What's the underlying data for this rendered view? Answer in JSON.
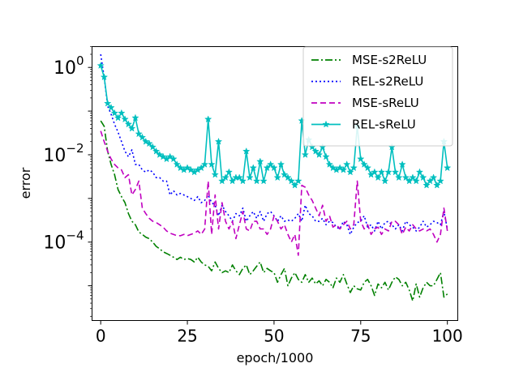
{
  "chart_data": {
    "type": "line",
    "title": "",
    "xlabel": "epoch/1000",
    "ylabel": "error",
    "yscale": "log",
    "xlim": [
      -2.5,
      103
    ],
    "ylim": [
      1.6e-06,
      3
    ],
    "xticks": [
      0,
      25,
      50,
      75,
      100
    ],
    "xtick_labels": [
      "0",
      "25",
      "50",
      "75",
      "100"
    ],
    "yticks": [
      1,
      0.01,
      0.0001
    ],
    "ytick_labels": [
      {
        "base": "10",
        "exp": "0"
      },
      {
        "base": "10",
        "exp": "−2"
      },
      {
        "base": "10",
        "exp": "−4"
      }
    ],
    "grid": false,
    "legend_position": "top-right",
    "series": [
      {
        "name": "MSE-s2ReLU",
        "color": "#008000",
        "style": "dashdot",
        "marker": "none",
        "x": [
          0,
          1,
          2,
          3,
          4,
          5,
          6,
          7,
          8,
          9,
          10,
          11,
          12,
          13,
          14,
          15,
          16,
          17,
          18,
          19,
          20,
          21,
          22,
          23,
          24,
          25,
          26,
          27,
          28,
          29,
          30,
          31,
          32,
          33,
          34,
          35,
          36,
          37,
          38,
          39,
          40,
          41,
          42,
          43,
          44,
          45,
          46,
          47,
          48,
          49,
          50,
          51,
          52,
          53,
          54,
          55,
          56,
          57,
          58,
          59,
          60,
          61,
          62,
          63,
          64,
          65,
          66,
          67,
          68,
          69,
          70,
          71,
          72,
          73,
          74,
          75,
          76,
          77,
          78,
          79,
          80,
          81,
          82,
          83,
          84,
          85,
          86,
          87,
          88,
          89,
          90,
          91,
          92,
          93,
          94,
          95,
          96,
          97,
          98,
          99,
          100
        ],
        "y": [
          0.06,
          0.045,
          0.012,
          0.006,
          0.0035,
          0.0016,
          0.0011,
          0.0008,
          0.00045,
          0.0003,
          0.00025,
          0.00017,
          0.00015,
          0.00013,
          0.00012,
          0.0001,
          8e-05,
          7e-05,
          6e-05,
          5.5e-05,
          5e-05,
          4.5e-05,
          4e-05,
          4.5e-05,
          4e-05,
          4.2e-05,
          4e-05,
          3.5e-05,
          4.5e-05,
          3.5e-05,
          3e-05,
          2.8e-05,
          2.2e-05,
          3.5e-05,
          2.5e-05,
          2e-05,
          2.2e-05,
          2e-05,
          3e-05,
          2.2e-05,
          1.8e-05,
          2.5e-05,
          3e-05,
          1.8e-05,
          2.2e-05,
          2.8e-05,
          3.5e-05,
          2e-05,
          2.5e-05,
          2.2e-05,
          2e-05,
          1.2e-05,
          1.8e-05,
          2.5e-05,
          1e-05,
          1.5e-05,
          2e-05,
          1.4e-05,
          1.2e-05,
          1.8e-05,
          1.2e-05,
          1.5e-05,
          1.1e-05,
          1.3e-05,
          1e-05,
          1.4e-05,
          1.2e-05,
          9e-06,
          1.5e-05,
          1.2e-05,
          1.8e-05,
          1.1e-05,
          7e-06,
          1e-05,
          8.5e-06,
          8e-06,
          1.2e-05,
          1.4e-05,
          1e-05,
          6e-06,
          1.1e-05,
          9e-06,
          1.2e-05,
          8e-06,
          1.2e-05,
          1.6e-05,
          1.4e-05,
          1e-05,
          1.2e-05,
          8e-06,
          4.5e-06,
          1.1e-05,
          5.5e-06,
          9e-06,
          1.2e-05,
          1e-05,
          1e-05,
          1.4e-05,
          2e-05,
          5.5e-06,
          6.5e-06
        ]
      },
      {
        "name": "REL-s2ReLU",
        "color": "#0000ff",
        "style": "dotted",
        "marker": "none",
        "x": [
          0,
          1,
          2,
          3,
          4,
          5,
          6,
          7,
          8,
          9,
          10,
          11,
          12,
          13,
          14,
          15,
          16,
          17,
          18,
          19,
          20,
          21,
          22,
          23,
          24,
          25,
          26,
          27,
          28,
          29,
          30,
          31,
          32,
          33,
          34,
          35,
          36,
          37,
          38,
          39,
          40,
          41,
          42,
          43,
          44,
          45,
          46,
          47,
          48,
          49,
          50,
          51,
          52,
          53,
          54,
          55,
          56,
          57,
          58,
          59,
          60,
          61,
          62,
          63,
          64,
          65,
          66,
          67,
          68,
          69,
          70,
          71,
          72,
          73,
          74,
          75,
          76,
          77,
          78,
          79,
          80,
          81,
          82,
          83,
          84,
          85,
          86,
          87,
          88,
          89,
          90,
          91,
          92,
          93,
          94,
          95,
          96,
          97,
          98,
          99,
          100
        ],
        "y": [
          2.0,
          0.6,
          0.13,
          0.085,
          0.05,
          0.033,
          0.02,
          0.012,
          0.009,
          0.013,
          0.006,
          0.006,
          0.0045,
          0.004,
          0.0045,
          0.004,
          0.003,
          0.003,
          0.0025,
          0.0025,
          0.0012,
          0.0015,
          0.0012,
          0.0013,
          0.0012,
          0.0011,
          0.001,
          0.0009,
          0.0011,
          0.0008,
          0.0009,
          0.0012,
          0.0008,
          0.0007,
          0.0004,
          0.0007,
          0.0005,
          0.0004,
          0.0003,
          0.00045,
          0.0004,
          0.0006,
          0.0003,
          0.0004,
          0.0005,
          0.00035,
          0.0005,
          0.0003,
          0.00045,
          0.0005,
          0.0004,
          0.0003,
          0.0004,
          0.0003,
          0.00032,
          0.0003,
          0.00035,
          0.00045,
          0.0003,
          0.0007,
          0.00045,
          0.0004,
          0.0003,
          0.0003,
          0.00035,
          0.00025,
          0.0003,
          0.00028,
          0.00022,
          0.0002,
          0.0003,
          0.00025,
          0.00015,
          0.00022,
          0.00028,
          0.0003,
          0.0004,
          0.00022,
          0.00025,
          0.00018,
          0.0003,
          0.0002,
          0.00028,
          0.0003,
          0.00025,
          0.0002,
          0.00025,
          0.00018,
          0.0003,
          0.00025,
          0.00022,
          0.00018,
          0.00022,
          0.0003,
          0.00022,
          0.00025,
          0.0003,
          0.00028,
          0.00025,
          0.0005,
          0.0002
        ]
      },
      {
        "name": "MSE-sReLU",
        "color": "#c000c0",
        "style": "dashed",
        "marker": "none",
        "x": [
          0,
          1,
          2,
          3,
          4,
          5,
          6,
          7,
          8,
          9,
          10,
          11,
          12,
          13,
          14,
          15,
          16,
          17,
          18,
          19,
          20,
          21,
          22,
          23,
          24,
          25,
          26,
          27,
          28,
          29,
          30,
          31,
          32,
          33,
          34,
          35,
          36,
          37,
          38,
          39,
          40,
          41,
          42,
          43,
          44,
          45,
          46,
          47,
          48,
          49,
          50,
          51,
          52,
          53,
          54,
          55,
          56,
          57,
          58,
          59,
          60,
          61,
          62,
          63,
          64,
          65,
          66,
          67,
          68,
          69,
          70,
          71,
          72,
          73,
          74,
          75,
          76,
          77,
          78,
          79,
          80,
          81,
          82,
          83,
          84,
          85,
          86,
          87,
          88,
          89,
          90,
          91,
          92,
          93,
          94,
          95,
          96,
          97,
          98,
          99,
          100
        ],
        "y": [
          0.035,
          0.02,
          0.012,
          0.008,
          0.006,
          0.005,
          0.0045,
          0.003,
          0.0035,
          0.0012,
          0.0016,
          0.0025,
          0.0006,
          0.00045,
          0.00035,
          0.0003,
          0.00028,
          0.00025,
          0.00022,
          0.00018,
          0.00016,
          0.00015,
          0.00014,
          0.00014,
          0.00015,
          0.00014,
          0.00015,
          0.00016,
          0.00018,
          0.00015,
          0.0002,
          0.0025,
          0.00015,
          0.0012,
          0.0002,
          0.0008,
          0.0003,
          0.0002,
          0.0003,
          0.00012,
          0.00025,
          0.0005,
          0.0002,
          0.00018,
          0.0003,
          0.0003,
          0.0002,
          0.0002,
          0.00015,
          0.0002,
          0.0004,
          0.0003,
          0.0002,
          0.00025,
          0.00015,
          0.0001,
          0.00015,
          5e-05,
          0.002,
          0.0018,
          0.0012,
          0.0009,
          0.0006,
          0.0004,
          0.0007,
          0.0003,
          0.0004,
          0.00022,
          0.00025,
          0.0002,
          0.00025,
          0.0003,
          0.0002,
          0.00025,
          0.0025,
          0.0003,
          0.0002,
          0.00025,
          0.00015,
          0.0002,
          0.00022,
          0.00015,
          0.0002,
          0.00018,
          0.0003,
          0.0003,
          0.00025,
          0.00015,
          0.00022,
          0.00018,
          0.00025,
          0.0002,
          0.00018,
          0.0002,
          0.00018,
          0.0002,
          0.00015,
          0.0001,
          0.00015,
          0.0006,
          0.00018
        ]
      },
      {
        "name": "REL-sReLU",
        "color": "#00bfbf",
        "style": "solid",
        "marker": "star",
        "x": [
          0,
          1,
          2,
          3,
          4,
          5,
          6,
          7,
          8,
          9,
          10,
          11,
          12,
          13,
          14,
          15,
          16,
          17,
          18,
          19,
          20,
          21,
          22,
          23,
          24,
          25,
          26,
          27,
          28,
          29,
          30,
          31,
          32,
          33,
          34,
          35,
          36,
          37,
          38,
          39,
          40,
          41,
          42,
          43,
          44,
          45,
          46,
          47,
          48,
          49,
          50,
          51,
          52,
          53,
          54,
          55,
          56,
          57,
          58,
          59,
          60,
          61,
          62,
          63,
          64,
          65,
          66,
          67,
          68,
          69,
          70,
          71,
          72,
          73,
          74,
          75,
          76,
          77,
          78,
          79,
          80,
          81,
          82,
          83,
          84,
          85,
          86,
          87,
          88,
          89,
          90,
          91,
          92,
          93,
          94,
          95,
          96,
          97,
          98,
          99,
          100
        ],
        "y": [
          1.1,
          0.6,
          0.15,
          0.12,
          0.09,
          0.07,
          0.09,
          0.065,
          0.05,
          0.04,
          0.07,
          0.03,
          0.025,
          0.02,
          0.018,
          0.015,
          0.012,
          0.01,
          0.009,
          0.008,
          0.009,
          0.008,
          0.006,
          0.005,
          0.0045,
          0.005,
          0.0045,
          0.004,
          0.0045,
          0.005,
          0.006,
          0.065,
          0.006,
          0.0035,
          0.02,
          0.0025,
          0.003,
          0.004,
          0.0025,
          0.003,
          0.003,
          0.0025,
          0.012,
          0.003,
          0.005,
          0.0025,
          0.007,
          0.0025,
          0.005,
          0.006,
          0.005,
          0.003,
          0.006,
          0.0035,
          0.003,
          0.0025,
          0.002,
          0.0025,
          0.06,
          0.01,
          0.022,
          0.015,
          0.012,
          0.01,
          0.015,
          0.009,
          0.006,
          0.005,
          0.0045,
          0.005,
          0.0045,
          0.006,
          0.004,
          0.005,
          0.045,
          0.008,
          0.006,
          0.005,
          0.0035,
          0.004,
          0.003,
          0.004,
          0.0025,
          0.004,
          0.015,
          0.004,
          0.003,
          0.006,
          0.003,
          0.0025,
          0.003,
          0.0025,
          0.004,
          0.003,
          0.002,
          0.0025,
          0.003,
          0.002,
          0.0025,
          0.02,
          0.005
        ]
      }
    ]
  }
}
